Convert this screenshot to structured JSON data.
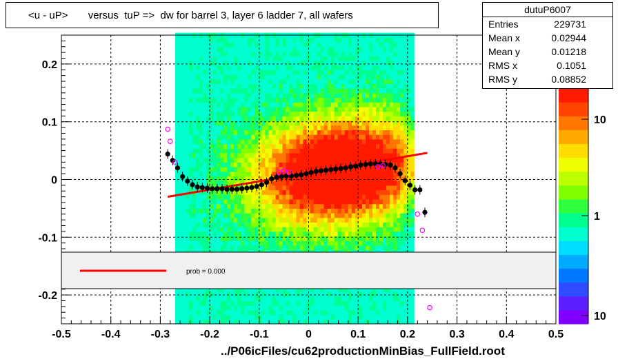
{
  "title": "<u - uP>       versus  tuP =>  dw for barrel 3, layer 6 ladder 7, all wafers",
  "stats": {
    "name": "dutuP6007",
    "rows": [
      {
        "label": "Entries",
        "value": "229731"
      },
      {
        "label": "Mean x",
        "value": "0.02944"
      },
      {
        "label": "Mean y",
        "value": "0.01218"
      },
      {
        "label": "RMS x",
        "value": "0.1051"
      },
      {
        "label": "RMS y",
        "value": "0.08852"
      }
    ]
  },
  "legend": {
    "fit_label": "prob = 0.000",
    "fit_color": "#ff0000"
  },
  "footer": "../P06icFiles/cu62productionMinBias_FullField.root",
  "colorbar": {
    "ticks": [
      "10",
      "1",
      "10"
    ]
  },
  "colors": {
    "profile": "#000000",
    "alt_markers": "#ff00ff",
    "fit": "#ff0000"
  },
  "chart_data": {
    "type": "heatmap",
    "xlim": [
      -0.5,
      0.5
    ],
    "ylim": [
      -0.25,
      0.25
    ],
    "x_ticks": [
      -0.5,
      -0.4,
      -0.3,
      -0.2,
      -0.1,
      0,
      0.1,
      0.2,
      0.3,
      0.4,
      0.5
    ],
    "x_tick_labels": [
      "-0.5",
      "-0.4",
      "-0.3",
      "-0.2",
      "-0.1",
      "0",
      "0.1",
      "0.2",
      "0.3",
      "0.4",
      "0.5"
    ],
    "y_ticks": [
      -0.2,
      -0.1,
      0,
      0.1,
      0.2
    ],
    "y_tick_labels": [
      "-0.2",
      "-0.1",
      "0",
      "0.1",
      "0.2"
    ],
    "grid": true,
    "density_x_range": [
      -0.27,
      0.21
    ],
    "profile": {
      "x": [
        -0.285,
        -0.275,
        -0.265,
        -0.255,
        -0.245,
        -0.235,
        -0.225,
        -0.215,
        -0.205,
        -0.195,
        -0.185,
        -0.175,
        -0.165,
        -0.155,
        -0.145,
        -0.135,
        -0.125,
        -0.115,
        -0.105,
        -0.095,
        -0.085,
        -0.075,
        -0.065,
        -0.055,
        -0.045,
        -0.035,
        -0.025,
        -0.015,
        -0.005,
        0.005,
        0.015,
        0.025,
        0.035,
        0.045,
        0.055,
        0.065,
        0.075,
        0.085,
        0.095,
        0.105,
        0.115,
        0.125,
        0.135,
        0.145,
        0.155,
        0.165,
        0.175,
        0.185,
        0.195,
        0.205,
        0.215,
        0.225,
        0.235
      ],
      "y": [
        0.044,
        0.033,
        0.02,
        0.005,
        -0.003,
        -0.009,
        -0.013,
        -0.014,
        -0.015,
        -0.016,
        -0.016,
        -0.016,
        -0.017,
        -0.017,
        -0.017,
        -0.016,
        -0.015,
        -0.014,
        -0.012,
        -0.009,
        -0.005,
        0.001,
        0.004,
        0.005,
        0.006,
        0.006,
        0.007,
        0.008,
        0.01,
        0.012,
        0.014,
        0.015,
        0.016,
        0.017,
        0.018,
        0.019,
        0.02,
        0.022,
        0.023,
        0.025,
        0.026,
        0.027,
        0.027,
        0.027,
        0.026,
        0.025,
        0.02,
        0.01,
        -0.002,
        -0.01,
        -0.018,
        -0.018,
        -0.057
      ]
    },
    "alt_points": {
      "x": [
        -0.285,
        -0.28,
        -0.27,
        -0.06,
        -0.05,
        -0.04,
        0.14,
        0.15,
        0.22,
        0.23,
        0.245
      ],
      "y": [
        0.087,
        0.066,
        0.03,
        0.012,
        0.015,
        0.012,
        0.022,
        0.024,
        -0.06,
        -0.088,
        -0.222
      ]
    },
    "fit": {
      "x": [
        -0.285,
        0.24
      ],
      "y": [
        -0.03,
        0.046
      ]
    }
  }
}
